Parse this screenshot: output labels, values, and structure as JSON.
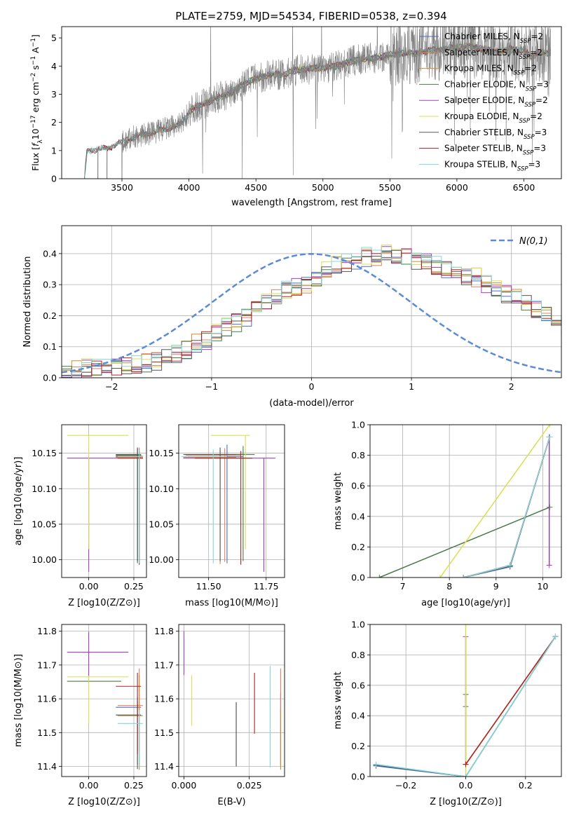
{
  "figure_title": "PLATE=2759, MJD=54534, FIBERID=0538, z=0.394",
  "colors": {
    "Chabrier MILES": "#4a6fc8",
    "Salpeter MILES": "#e08060",
    "Kroupa MILES": "#d08a30",
    "Chabrier ELODIE": "#4a7a4a",
    "Salpeter ELODIE": "#a040c0",
    "Kroupa ELODIE": "#d8e050",
    "Chabrier STELIB": "#555555",
    "Salpeter STELIB": "#b02020",
    "Kroupa STELIB": "#80d8d8",
    "data": "#808080",
    "gaussian": "#5b8bd6"
  },
  "chart_data": [
    {
      "id": "spectrum",
      "type": "line",
      "title": "PLATE=2759, MJD=54534, FIBERID=0538, z=0.394",
      "xlabel": "wavelength [Angstrom, rest frame]",
      "ylabel": "Flux [f_λ 10^-17 erg cm^-2 s^-1 A^-1]",
      "xlim": [
        3050,
        6780
      ],
      "ylim": [
        0,
        5.4
      ],
      "xticks": [
        3500,
        4000,
        4500,
        5000,
        5500,
        6000,
        6500
      ],
      "yticks": [
        0,
        1,
        2,
        3,
        4,
        5
      ],
      "legend_position": "top-right",
      "legend": [
        {
          "label": "Chabrier MILES, N",
          "sub": "SSP",
          "tail": "=2",
          "color_key": "Chabrier MILES"
        },
        {
          "label": "Salpeter MILES, N",
          "sub": "SSP",
          "tail": "=2",
          "color_key": "Salpeter MILES"
        },
        {
          "label": "Kroupa MILES, N",
          "sub": "SSP",
          "tail": "=2",
          "color_key": "Kroupa MILES"
        },
        {
          "label": "Chabrier ELODIE, N",
          "sub": "SSP",
          "tail": "=3",
          "color_key": "Chabrier ELODIE"
        },
        {
          "label": "Salpeter ELODIE, N",
          "sub": "SSP",
          "tail": "=2",
          "color_key": "Salpeter ELODIE"
        },
        {
          "label": "Kroupa ELODIE, N",
          "sub": "SSP",
          "tail": "=2",
          "color_key": "Kroupa ELODIE"
        },
        {
          "label": "Chabrier STELIB, N",
          "sub": "SSP",
          "tail": "=3",
          "color_key": "Chabrier STELIB"
        },
        {
          "label": "Salpeter STELIB, N",
          "sub": "SSP",
          "tail": "=3",
          "color_key": "Salpeter STELIB"
        },
        {
          "label": "Kroupa STELIB, N",
          "sub": "SSP",
          "tail": "=3",
          "color_key": "Kroupa STELIB"
        }
      ],
      "continuum": {
        "x": [
          3220,
          3240,
          3400,
          3500,
          3600,
          3700,
          3850,
          3950,
          4000,
          4100,
          4200,
          4300,
          4400,
          4500,
          4600,
          4700,
          4800,
          4900,
          5000,
          5100,
          5200,
          5300,
          5400,
          5500,
          5600,
          5700,
          5800,
          5900,
          6000,
          6100,
          6200,
          6300,
          6400,
          6500,
          6560,
          6600,
          6700
        ],
        "y": [
          0.0,
          1.0,
          1.1,
          1.3,
          1.5,
          1.6,
          1.8,
          1.95,
          2.4,
          2.65,
          2.85,
          3.0,
          3.35,
          3.55,
          3.7,
          3.7,
          3.85,
          3.9,
          3.95,
          4.0,
          4.15,
          4.25,
          4.3,
          4.4,
          4.45,
          4.45,
          4.55,
          4.6,
          4.65,
          4.7,
          4.6,
          4.5,
          4.6,
          4.55,
          4.3,
          4.5,
          4.45
        ]
      }
    },
    {
      "id": "residuals",
      "type": "line",
      "xlabel": "(data-model)/error",
      "ylabel": "Normed distribution",
      "xlim": [
        -2.5,
        2.5
      ],
      "ylim": [
        0,
        0.49
      ],
      "xticks": [
        -2,
        -1,
        0,
        1,
        2
      ],
      "yticks": [
        0.0,
        0.1,
        0.2,
        0.3,
        0.4
      ],
      "grid": true,
      "legend_position": "top-right",
      "gaussian_label": "N(0,1)",
      "bin_width": 0.1,
      "histogram_x0": -2.5,
      "histogram_approx": [
        0.02,
        0.025,
        0.03,
        0.03,
        0.03,
        0.035,
        0.04,
        0.04,
        0.05,
        0.055,
        0.07,
        0.08,
        0.095,
        0.11,
        0.12,
        0.14,
        0.165,
        0.18,
        0.2,
        0.22,
        0.24,
        0.26,
        0.28,
        0.29,
        0.3,
        0.32,
        0.34,
        0.36,
        0.37,
        0.38,
        0.39,
        0.39,
        0.4,
        0.4,
        0.39,
        0.38,
        0.37,
        0.36,
        0.35,
        0.34,
        0.33,
        0.32,
        0.3,
        0.29,
        0.27,
        0.26,
        0.24,
        0.22,
        0.21,
        0.19,
        0.17,
        0.16,
        0.14,
        0.13,
        0.12,
        0.11,
        0.1,
        0.09,
        0.08,
        0.07,
        0.07,
        0.06,
        0.06,
        0.05,
        0.05,
        0.05,
        0.05,
        0.045,
        0.04,
        0.04,
        0.04,
        0.035,
        0.03,
        0.03,
        0.03,
        0.03,
        0.025,
        0.025,
        0.02,
        0.02,
        0.02,
        0.02,
        0.02,
        0.02,
        0.02,
        0.02,
        0.02,
        0.02,
        0.02,
        0.02,
        0.02,
        0.02,
        0.02,
        0.02,
        0.02,
        0.02,
        0.02,
        0.02,
        0.02,
        0.02
      ]
    },
    {
      "id": "age_vs_Z",
      "type": "scatter",
      "xlabel": "Z [log10(Z/Z⊙)]",
      "ylabel": "age  [log10(age/yr)]",
      "xlim": [
        -0.15,
        0.32
      ],
      "ylim": [
        9.975,
        10.19
      ],
      "xticks": [
        0.0,
        0.25
      ],
      "yticks": [
        10.0,
        10.05,
        10.1,
        10.15
      ],
      "grid": true,
      "points": [
        {
          "s": "Chabrier MILES",
          "x": 0.27,
          "y": 10.145,
          "xerr": [
            0.12,
            0.02
          ],
          "yerr": [
            0.15,
            0.01
          ]
        },
        {
          "s": "Salpeter MILES",
          "x": 0.28,
          "y": 10.146,
          "xerr": [
            0.13,
            0.02
          ],
          "yerr": [
            0.15,
            0.012
          ]
        },
        {
          "s": "Kroupa MILES",
          "x": 0.28,
          "y": 10.144,
          "xerr": [
            0.13,
            0.02
          ],
          "yerr": [
            0.15,
            0.012
          ]
        },
        {
          "s": "Chabrier ELODIE",
          "x": 0.27,
          "y": 10.147,
          "xerr": [
            0.12,
            0.02
          ],
          "yerr": [
            0.15,
            0.01
          ]
        },
        {
          "s": "Salpeter ELODIE",
          "x": 0.0,
          "y": 10.143,
          "xerr": [
            0.12,
            0.3
          ],
          "yerr": [
            0.16,
            0.0
          ]
        },
        {
          "s": "Kroupa ELODIE",
          "x": 0.0,
          "y": 10.175,
          "xerr": [
            0.12,
            0.22
          ],
          "yerr": [
            0.16,
            0.0
          ]
        },
        {
          "s": "Chabrier STELIB",
          "x": 0.27,
          "y": 10.148,
          "xerr": [
            0.12,
            0.02
          ],
          "yerr": [
            0.15,
            0.01
          ]
        },
        {
          "s": "Salpeter STELIB",
          "x": 0.28,
          "y": 10.143,
          "xerr": [
            0.12,
            0.02
          ],
          "yerr": [
            0.15,
            0.01
          ]
        },
        {
          "s": "Kroupa STELIB",
          "x": 0.28,
          "y": 10.145,
          "xerr": [
            0.12,
            0.02
          ],
          "yerr": [
            0.15,
            0.01
          ]
        }
      ]
    },
    {
      "id": "age_vs_mass",
      "type": "scatter",
      "xlabel": "mass [log10(M/M⊙)]",
      "ylabel": "",
      "xlim": [
        11.37,
        11.83
      ],
      "ylim": [
        9.975,
        10.19
      ],
      "xticks": [
        11.5,
        11.75
      ],
      "yticks": [
        10.0,
        10.05,
        10.1,
        10.15
      ],
      "grid": true,
      "points": [
        {
          "s": "Chabrier MILES",
          "x": 11.58,
          "y": 10.145,
          "xerr": [
            0.17,
            0.07
          ],
          "yerr": [
            0.15,
            0.017
          ]
        },
        {
          "s": "Salpeter MILES",
          "x": 11.57,
          "y": 10.147,
          "xerr": [
            0.17,
            0.07
          ],
          "yerr": [
            0.15,
            0.01
          ]
        },
        {
          "s": "Kroupa MILES",
          "x": 11.55,
          "y": 10.144,
          "xerr": [
            0.16,
            0.07
          ],
          "yerr": [
            0.15,
            0.01
          ]
        },
        {
          "s": "Chabrier ELODIE",
          "x": 11.65,
          "y": 10.148,
          "xerr": [
            0.2,
            0.05
          ],
          "yerr": [
            0.15,
            0.012
          ]
        },
        {
          "s": "Salpeter ELODIE",
          "x": 11.74,
          "y": 10.143,
          "xerr": [
            0.35,
            0.05
          ],
          "yerr": [
            0.16,
            0.0
          ]
        },
        {
          "s": "Kroupa ELODIE",
          "x": 11.66,
          "y": 10.175,
          "xerr": [
            0.15,
            0.02
          ],
          "yerr": [
            0.16,
            0.0
          ]
        },
        {
          "s": "Chabrier STELIB",
          "x": 11.55,
          "y": 10.148,
          "xerr": [
            0.16,
            0.07
          ],
          "yerr": [
            0.15,
            0.01
          ]
        },
        {
          "s": "Salpeter STELIB",
          "x": 11.64,
          "y": 10.143,
          "xerr": [
            0.2,
            0.05
          ],
          "yerr": [
            0.15,
            0.01
          ]
        },
        {
          "s": "Kroupa STELIB",
          "x": 11.52,
          "y": 10.145,
          "xerr": [
            0.14,
            0.06
          ],
          "yerr": [
            0.15,
            0.01
          ]
        }
      ]
    },
    {
      "id": "mw_vs_age",
      "type": "line",
      "xlabel": "age  [log10(age/yr)]",
      "ylabel": "mass weight",
      "xlim": [
        6.3,
        10.4
      ],
      "ylim": [
        0,
        1.0
      ],
      "xticks": [
        7,
        8,
        9,
        10
      ],
      "yticks": [
        0.0,
        0.2,
        0.4,
        0.6,
        0.8,
        1.0
      ],
      "grid": true,
      "series": [
        {
          "s": "Chabrier MILES",
          "x": [
            8.3,
            9.3,
            10.15
          ],
          "y": [
            0.0,
            0.07,
            0.92
          ]
        },
        {
          "s": "Salpeter MILES",
          "x": [
            8.3,
            9.3,
            10.15
          ],
          "y": [
            0.0,
            0.08,
            0.92
          ]
        },
        {
          "s": "Kroupa MILES",
          "x": [
            8.3,
            9.3,
            10.15
          ],
          "y": [
            0.0,
            0.08,
            0.92
          ]
        },
        {
          "s": "Chabrier ELODIE",
          "x": [
            6.5,
            10.15
          ],
          "y": [
            0.0,
            0.46
          ]
        },
        {
          "s": "Salpeter ELODIE",
          "x": [
            10.14,
            10.14
          ],
          "y": [
            0.08,
            0.92
          ]
        },
        {
          "s": "Kroupa ELODIE",
          "x": [
            7.8,
            10.15
          ],
          "y": [
            0.0,
            1.0
          ]
        },
        {
          "s": "Chabrier STELIB",
          "x": [
            8.3,
            9.3,
            10.15
          ],
          "y": [
            0.0,
            0.075,
            0.92
          ]
        },
        {
          "s": "Salpeter STELIB",
          "x": [
            8.3,
            9.3,
            10.15
          ],
          "y": [
            0.0,
            0.08,
            0.92
          ]
        },
        {
          "s": "Kroupa STELIB",
          "x": [
            8.3,
            9.3,
            10.15
          ],
          "y": [
            0.0,
            0.08,
            0.92
          ]
        }
      ]
    },
    {
      "id": "mass_vs_Z",
      "type": "scatter",
      "xlabel": "Z [log10(Z/Z⊙)]",
      "ylabel": "mass [log10(M/M⊙)]",
      "xlim": [
        -0.15,
        0.32
      ],
      "ylim": [
        11.37,
        11.82
      ],
      "xticks": [
        0.0,
        0.25
      ],
      "yticks": [
        11.4,
        11.5,
        11.6,
        11.7,
        11.8
      ],
      "grid": true,
      "points": [
        {
          "s": "Chabrier MILES",
          "x": 0.27,
          "y": 11.575,
          "xerr": [
            0.12,
            0.02
          ],
          "yerr": [
            0.17,
            0.03
          ]
        },
        {
          "s": "Salpeter MILES",
          "x": 0.28,
          "y": 11.58,
          "xerr": [
            0.12,
            0.02
          ],
          "yerr": [
            0.18,
            0.11
          ]
        },
        {
          "s": "Kroupa MILES",
          "x": 0.28,
          "y": 11.55,
          "xerr": [
            0.12,
            0.02
          ],
          "yerr": [
            0.16,
            0.12
          ]
        },
        {
          "s": "Chabrier ELODIE",
          "x": 0.0,
          "y": 11.652,
          "xerr": [
            0.12,
            0.18
          ],
          "yerr": [
            0.0,
            0.0
          ]
        },
        {
          "s": "Salpeter ELODIE",
          "x": 0.0,
          "y": 11.738,
          "xerr": [
            0.12,
            0.22
          ],
          "yerr": [
            0.07,
            0.06
          ]
        },
        {
          "s": "Kroupa ELODIE",
          "x": 0.0,
          "y": 11.665,
          "xerr": [
            0.12,
            0.22
          ],
          "yerr": [
            0.14,
            0.0
          ]
        },
        {
          "s": "Chabrier STELIB",
          "x": 0.27,
          "y": 11.552,
          "xerr": [
            0.12,
            0.02
          ],
          "yerr": [
            0.16,
            0.04
          ]
        },
        {
          "s": "Salpeter STELIB",
          "x": 0.27,
          "y": 11.637,
          "xerr": [
            0.12,
            0.02
          ],
          "yerr": [
            0.2,
            0.04
          ]
        },
        {
          "s": "Kroupa STELIB",
          "x": 0.28,
          "y": 11.527,
          "xerr": [
            0.12,
            0.02
          ],
          "yerr": [
            0.13,
            0.04
          ]
        }
      ]
    },
    {
      "id": "mass_vs_ebv",
      "type": "scatter",
      "xlabel": "E(B-V)",
      "ylabel": "",
      "xlim": [
        -0.002,
        0.0385
      ],
      "ylim": [
        11.37,
        11.82
      ],
      "xticks": [
        0.0,
        0.025
      ],
      "yticks": [
        11.4,
        11.5,
        11.6,
        11.7,
        11.8
      ],
      "grid": true,
      "points": [
        {
          "s": "Chabrier MILES",
          "x": 0.037,
          "y": 11.575,
          "yerr": [
            0.17,
            0.04
          ]
        },
        {
          "s": "Salpeter MILES",
          "x": 0.037,
          "y": 11.58,
          "yerr": [
            0.18,
            0.11
          ]
        },
        {
          "s": "Kroupa MILES",
          "x": 0.037,
          "y": 11.55,
          "yerr": [
            0.16,
            0.02
          ]
        },
        {
          "s": "Chabrier ELODIE",
          "x": 0.02,
          "y": 11.5,
          "yerr": [
            0.1,
            0.09
          ]
        },
        {
          "s": "Salpeter ELODIE",
          "x": 0.0,
          "y": 11.74,
          "yerr": [
            0.07,
            0.06
          ]
        },
        {
          "s": "Kroupa ELODIE",
          "x": 0.003,
          "y": 11.6,
          "yerr": [
            0.08,
            0.07
          ]
        },
        {
          "s": "Chabrier STELIB",
          "x": 0.02,
          "y": 11.5,
          "yerr": [
            0.1,
            0.09
          ]
        },
        {
          "s": "Salpeter STELIB",
          "x": 0.027,
          "y": 11.587,
          "yerr": [
            0.09,
            0.09
          ]
        },
        {
          "s": "Kroupa STELIB",
          "x": 0.033,
          "y": 11.527,
          "yerr": [
            0.13,
            0.17
          ]
        }
      ]
    },
    {
      "id": "mw_vs_Z",
      "type": "line",
      "xlabel": "Z [log10(Z/Z⊙)]",
      "ylabel": "mass weight",
      "xlim": [
        -0.32,
        0.32
      ],
      "ylim": [
        0,
        1.0
      ],
      "xticks": [
        -0.2,
        0.0,
        0.2
      ],
      "yticks": [
        0.0,
        0.2,
        0.4,
        0.6,
        0.8,
        1.0
      ],
      "grid": true,
      "series": [
        {
          "s": "Chabrier MILES",
          "x": [
            -0.3,
            0.0,
            0.3
          ],
          "y": [
            0.07,
            0.0,
            0.92
          ]
        },
        {
          "s": "Salpeter MILES",
          "x": [
            0.0,
            0.3
          ],
          "y": [
            0.08,
            0.92
          ]
        },
        {
          "s": "Kroupa MILES",
          "x": [
            0.0,
            0.3
          ],
          "y": [
            0.08,
            0.92
          ]
        },
        {
          "s": "Chabrier ELODIE",
          "x": [
            0.0,
            0.0
          ],
          "y": [
            0.46,
            0.54
          ]
        },
        {
          "s": "Salpeter ELODIE",
          "x": [
            0.0,
            0.0
          ],
          "y": [
            0.08,
            0.92
          ]
        },
        {
          "s": "Kroupa ELODIE",
          "x": [
            0.0,
            0.0
          ],
          "y": [
            0.0,
            1.0
          ]
        },
        {
          "s": "Chabrier STELIB",
          "x": [
            -0.3,
            0.0,
            0.3
          ],
          "y": [
            0.075,
            0.0,
            0.92
          ]
        },
        {
          "s": "Salpeter STELIB",
          "x": [
            0.0,
            0.3
          ],
          "y": [
            0.08,
            0.92
          ]
        },
        {
          "s": "Kroupa STELIB",
          "x": [
            -0.3,
            0.0,
            0.3
          ],
          "y": [
            0.08,
            0.0,
            0.92
          ]
        }
      ]
    }
  ]
}
